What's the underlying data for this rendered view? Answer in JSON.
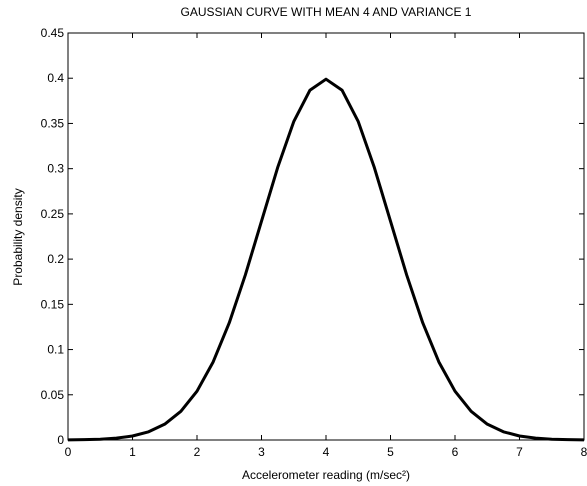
{
  "chart_data": {
    "type": "line",
    "title": "GAUSSIAN CURVE WITH MEAN 4 AND VARIANCE 1",
    "xlabel": "Accelerometer reading (m/sec²)",
    "ylabel": "Probability density",
    "x": [
      0,
      0.25,
      0.5,
      0.75,
      1,
      1.25,
      1.5,
      1.75,
      2,
      2.25,
      2.5,
      2.75,
      3,
      3.25,
      3.5,
      3.75,
      4,
      4.25,
      4.5,
      4.75,
      5,
      5.25,
      5.5,
      5.75,
      6,
      6.25,
      6.5,
      6.75,
      7,
      7.25,
      7.5,
      7.75,
      8
    ],
    "series": [
      {
        "name": "Gaussian",
        "color": "#000000",
        "values": [
          0.000134,
          0.000353,
          0.000873,
          0.002029,
          0.004432,
          0.009094,
          0.017528,
          0.03174,
          0.053991,
          0.086277,
          0.129518,
          0.182649,
          0.241971,
          0.301137,
          0.352065,
          0.386668,
          0.398942,
          0.386668,
          0.352065,
          0.301137,
          0.241971,
          0.182649,
          0.129518,
          0.086277,
          0.053991,
          0.03174,
          0.017528,
          0.009094,
          0.004432,
          0.002029,
          0.000873,
          0.000353,
          0.000134
        ]
      }
    ],
    "xlim": [
      0,
      8
    ],
    "xticks": [
      0,
      1,
      2,
      3,
      4,
      5,
      6,
      7,
      8
    ],
    "ylim": [
      0,
      0.45
    ],
    "yticks": [
      0,
      0.05,
      0.1,
      0.15,
      0.2,
      0.25,
      0.3,
      0.35,
      0.4,
      0.45
    ],
    "grid": false
  }
}
